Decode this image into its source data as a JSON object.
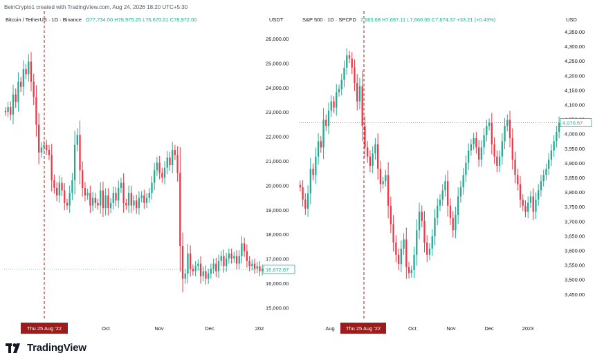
{
  "credit": "BeinCrypto1 created with TradingView.com, Aug 24, 2026 18:20 UTC+5:30",
  "brand": "TradingView",
  "colors": {
    "up": "#22ab94",
    "down": "#f23645",
    "crosshair": "#9b1c1c",
    "axis_text": "#131722"
  },
  "panels": [
    {
      "symbol": "Bitcoin / TetherUS · 1D · Binance",
      "ohlc": "O77,734.00 H78,975.25 L76,670.01 C78,972.00",
      "unit": "USDT",
      "last_price_label": "16,672.87",
      "crosshair_label": "Thu 25 Aug '22",
      "x_ticks": [
        "Oct",
        "Nov",
        "Dec",
        "202"
      ],
      "y_ticks": [
        "26,000.00",
        "25,000.00",
        "24,000.00",
        "23,000.00",
        "22,000.00",
        "21,000.00",
        "20,000.00",
        "19,000.00",
        "18,000.00",
        "17,000.00",
        "16,000.00",
        "15,000.00"
      ]
    },
    {
      "symbol": "S&P 500 · 1D · SPCFD",
      "ohlc": "7,665.68 H7,697.11 L7,660.06 C7,674.37 +33.21 (+0.43%)",
      "unit": "USD",
      "last_price_label": "4,070.57",
      "crosshair_label": "Thu 25 Aug '22",
      "x_ticks": [
        "Aug",
        "Oct",
        "Nov",
        "Dec",
        "2023"
      ],
      "y_ticks": [
        "4,350.00",
        "4,300.00",
        "4,250.00",
        "4,200.00",
        "4,150.00",
        "4,100.00",
        "4,050.00",
        "4,000.00",
        "3,950.00",
        "3,900.00",
        "3,850.00",
        "3,800.00",
        "3,750.00",
        "3,700.00",
        "3,650.00",
        "3,600.00",
        "3,550.00",
        "3,500.00",
        "3,450.00"
      ]
    }
  ],
  "chart_data": [
    {
      "type": "candlestick",
      "title": "Bitcoin / TetherUS · 1D · Binance",
      "ylabel": "USDT",
      "ylim": [
        14700,
        26300
      ],
      "x_ticks": [
        "Oct",
        "Nov",
        "Dec",
        "202"
      ],
      "crosshair": "Thu 25 Aug '22",
      "last_value": 16672.87,
      "close": [
        22900,
        23100,
        22800,
        23600,
        23300,
        24100,
        23900,
        24600,
        24400,
        24900,
        24100,
        23500,
        22400,
        21300,
        21500,
        21600,
        21400,
        21200,
        20200,
        19900,
        19600,
        20100,
        19800,
        19300,
        19200,
        19700,
        20200,
        21600,
        22000,
        20600,
        19900,
        19600,
        19700,
        19200,
        19500,
        19300,
        19200,
        19800,
        19100,
        19600,
        19100,
        19300,
        19700,
        19400,
        19900,
        20100,
        19300,
        19200,
        19700,
        19200,
        19400,
        19100,
        19500,
        19600,
        19300,
        19500,
        19700,
        20100,
        20600,
        20900,
        20500,
        20300,
        20700,
        21100,
        20800,
        21400,
        21200,
        20500,
        17600,
        16300,
        16500,
        17300,
        16700,
        16600,
        16800,
        16900,
        16400,
        16600,
        16300,
        16500,
        16700,
        16900,
        16600,
        17000,
        17200,
        16800,
        17100,
        17300,
        17100,
        17200,
        16900,
        17200,
        17700,
        17400,
        17000,
        16800,
        16900,
        16700,
        16800,
        16600,
        16700
      ],
      "series": [
        {
          "name": "",
          "values": []
        }
      ]
    },
    {
      "type": "candlestick",
      "title": "S&P 500 · 1D · SPCFD",
      "ylabel": "USD",
      "ylim": [
        3430,
        4385
      ],
      "x_ticks": [
        "Aug",
        "Oct",
        "Nov",
        "Dec",
        "2023"
      ],
      "crosshair": "Thu 25 Aug '22",
      "last_value": 4070.57,
      "close": [
        3860,
        3820,
        3790,
        3840,
        3920,
        3900,
        3960,
        4010,
        3990,
        4080,
        4060,
        4110,
        4140,
        4120,
        4170,
        4180,
        4210,
        4250,
        4290,
        4280,
        4250,
        4200,
        4140,
        4190,
        4060,
        3990,
        3960,
        3930,
        3970,
        4000,
        3920,
        3870,
        3880,
        3900,
        3800,
        3740,
        3680,
        3640,
        3610,
        3660,
        3690,
        3600,
        3580,
        3590,
        3640,
        3720,
        3780,
        3750,
        3680,
        3640,
        3660,
        3700,
        3760,
        3800,
        3820,
        3850,
        3880,
        3800,
        3760,
        3720,
        3770,
        3830,
        3860,
        3900,
        3940,
        3980,
        4000,
        4020,
        3990,
        3950,
        3990,
        4030,
        4060,
        4070,
        4000,
        3960,
        3930,
        3960,
        4010,
        4060,
        4080,
        4020,
        3950,
        3900,
        3870,
        3820,
        3800,
        3780,
        3810,
        3830,
        3780,
        3820,
        3850,
        3880,
        3900,
        3920,
        3950,
        3980,
        4010,
        4040,
        4070
      ]
    }
  ]
}
